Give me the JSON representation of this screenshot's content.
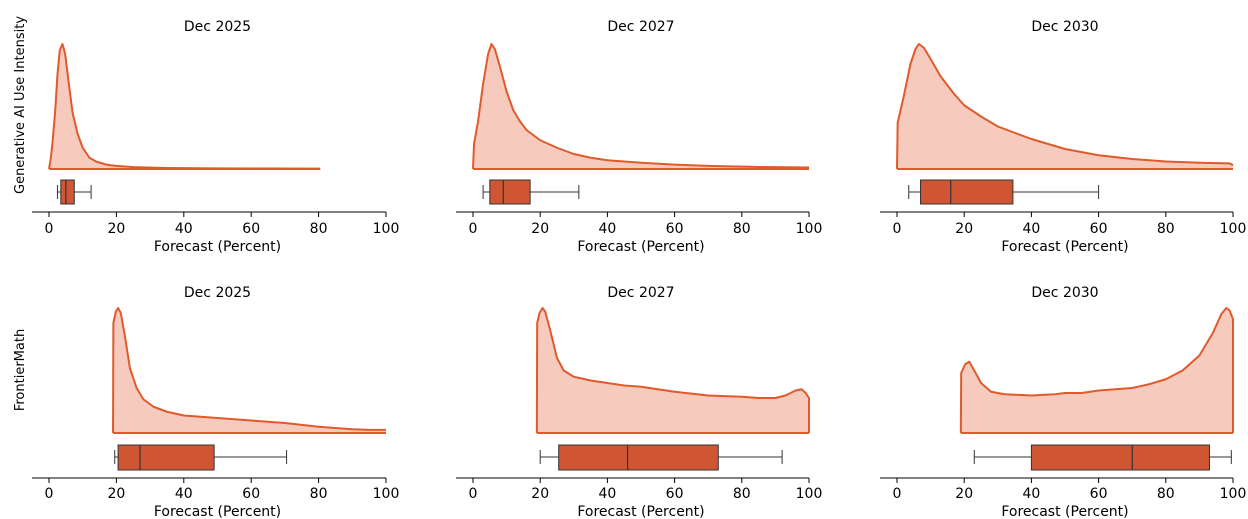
{
  "chart_data": {
    "type": "density-and-box",
    "colors": {
      "line": "#E05A2B",
      "fill": "#F6CBBE",
      "box": "#D05533",
      "whisker": "#333333"
    },
    "xlabel": "Forecast (Percent)",
    "xlim": [
      0,
      100
    ],
    "xticks": [
      "0",
      "20",
      "40",
      "60",
      "80",
      "100"
    ],
    "rows": [
      {
        "label": "Generative AI Use Intensity",
        "panels": [
          {
            "title": "Dec 2025",
            "density": [
              [
                0,
                0
              ],
              [
                0.5,
                0.08
              ],
              [
                1,
                0.2
              ],
              [
                1.8,
                0.45
              ],
              [
                2.5,
                0.75
              ],
              [
                3.2,
                0.95
              ],
              [
                4,
                1.0
              ],
              [
                4.8,
                0.92
              ],
              [
                5.8,
                0.7
              ],
              [
                7,
                0.45
              ],
              [
                8.5,
                0.28
              ],
              [
                10,
                0.17
              ],
              [
                12,
                0.09
              ],
              [
                14,
                0.06
              ],
              [
                17,
                0.035
              ],
              [
                20,
                0.025
              ],
              [
                25,
                0.015
              ],
              [
                35,
                0.008
              ],
              [
                50,
                0.005
              ],
              [
                65,
                0.004
              ],
              [
                80.5,
                0.003
              ]
            ],
            "box": {
              "whisker_low": 2.5,
              "q1": 3.5,
              "median": 5,
              "q3": 7.5,
              "whisker_high": 12.5
            }
          },
          {
            "title": "Dec 2027",
            "density": [
              [
                0,
                0
              ],
              [
                0.3,
                0.2
              ],
              [
                1.5,
                0.38
              ],
              [
                3,
                0.68
              ],
              [
                4.5,
                0.92
              ],
              [
                5.5,
                1.0
              ],
              [
                6.5,
                0.96
              ],
              [
                8,
                0.82
              ],
              [
                10,
                0.62
              ],
              [
                12,
                0.47
              ],
              [
                14,
                0.38
              ],
              [
                16,
                0.31
              ],
              [
                20,
                0.23
              ],
              [
                25,
                0.17
              ],
              [
                30,
                0.12
              ],
              [
                35,
                0.09
              ],
              [
                40,
                0.07
              ],
              [
                50,
                0.05
              ],
              [
                60,
                0.035
              ],
              [
                70,
                0.025
              ],
              [
                85,
                0.016
              ],
              [
                100,
                0.012
              ]
            ],
            "box": {
              "whisker_low": 3,
              "q1": 5,
              "median": 9,
              "q3": 17,
              "whisker_high": 31.5
            }
          },
          {
            "title": "Dec 2030",
            "density": [
              [
                0,
                0
              ],
              [
                0.2,
                0.37
              ],
              [
                2,
                0.58
              ],
              [
                4,
                0.84
              ],
              [
                5.5,
                0.96
              ],
              [
                6.5,
                1.0
              ],
              [
                8,
                0.97
              ],
              [
                10,
                0.88
              ],
              [
                13,
                0.74
              ],
              [
                17,
                0.6
              ],
              [
                20,
                0.51
              ],
              [
                25,
                0.42
              ],
              [
                30,
                0.34
              ],
              [
                35,
                0.29
              ],
              [
                40,
                0.24
              ],
              [
                45,
                0.2
              ],
              [
                50,
                0.16
              ],
              [
                60,
                0.11
              ],
              [
                70,
                0.08
              ],
              [
                80,
                0.06
              ],
              [
                90,
                0.05
              ],
              [
                95,
                0.047
              ],
              [
                99,
                0.045
              ],
              [
                100,
                0.03
              ]
            ],
            "box": {
              "whisker_low": 3.5,
              "q1": 7,
              "median": 16,
              "q3": 34.5,
              "whisker_high": 60
            }
          }
        ]
      },
      {
        "label": "FrontierMath",
        "panels": [
          {
            "title": "Dec 2025",
            "density": [
              [
                19,
                0
              ],
              [
                19.1,
                0.88
              ],
              [
                19.8,
                0.97
              ],
              [
                20.5,
                1.0
              ],
              [
                21.3,
                0.96
              ],
              [
                22.5,
                0.78
              ],
              [
                24,
                0.52
              ],
              [
                26,
                0.36
              ],
              [
                28,
                0.27
              ],
              [
                31,
                0.21
              ],
              [
                35,
                0.17
              ],
              [
                40,
                0.14
              ],
              [
                50,
                0.12
              ],
              [
                60,
                0.1
              ],
              [
                70,
                0.08
              ],
              [
                80,
                0.05
              ],
              [
                90,
                0.03
              ],
              [
                95,
                0.025
              ],
              [
                100,
                0.025
              ]
            ],
            "box": {
              "whisker_low": 19.5,
              "q1": 20.5,
              "median": 27,
              "q3": 49,
              "whisker_high": 70.5
            }
          },
          {
            "title": "Dec 2027",
            "density": [
              [
                19,
                0
              ],
              [
                19.1,
                0.88
              ],
              [
                19.8,
                0.96
              ],
              [
                20.7,
                1.0
              ],
              [
                21.5,
                0.97
              ],
              [
                23,
                0.82
              ],
              [
                25,
                0.6
              ],
              [
                27,
                0.5
              ],
              [
                30,
                0.45
              ],
              [
                35,
                0.42
              ],
              [
                40,
                0.4
              ],
              [
                45,
                0.38
              ],
              [
                50,
                0.37
              ],
              [
                60,
                0.33
              ],
              [
                70,
                0.3
              ],
              [
                80,
                0.29
              ],
              [
                85,
                0.28
              ],
              [
                90,
                0.28
              ],
              [
                93,
                0.3
              ],
              [
                96,
                0.34
              ],
              [
                97.8,
                0.35
              ],
              [
                99,
                0.32
              ],
              [
                100,
                0.28
              ],
              [
                100,
                0
              ]
            ],
            "box": {
              "whisker_low": 20,
              "q1": 25.5,
              "median": 46,
              "q3": 73,
              "whisker_high": 92
            }
          },
          {
            "title": "Dec 2030",
            "density": [
              [
                19,
                0
              ],
              [
                19.1,
                0.48
              ],
              [
                20.3,
                0.55
              ],
              [
                21.5,
                0.57
              ],
              [
                23,
                0.5
              ],
              [
                25,
                0.4
              ],
              [
                28,
                0.33
              ],
              [
                32,
                0.31
              ],
              [
                40,
                0.3
              ],
              [
                47,
                0.31
              ],
              [
                50,
                0.32
              ],
              [
                55,
                0.32
              ],
              [
                60,
                0.34
              ],
              [
                65,
                0.35
              ],
              [
                70,
                0.36
              ],
              [
                75,
                0.39
              ],
              [
                80,
                0.43
              ],
              [
                85,
                0.5
              ],
              [
                90,
                0.62
              ],
              [
                94,
                0.8
              ],
              [
                96.5,
                0.95
              ],
              [
                98,
                1.0
              ],
              [
                99,
                0.98
              ],
              [
                100,
                0.91
              ],
              [
                100,
                0
              ]
            ],
            "box": {
              "whisker_low": 23,
              "q1": 40,
              "median": 70,
              "q3": 93,
              "whisker_high": 99.5
            }
          }
        ]
      }
    ]
  }
}
